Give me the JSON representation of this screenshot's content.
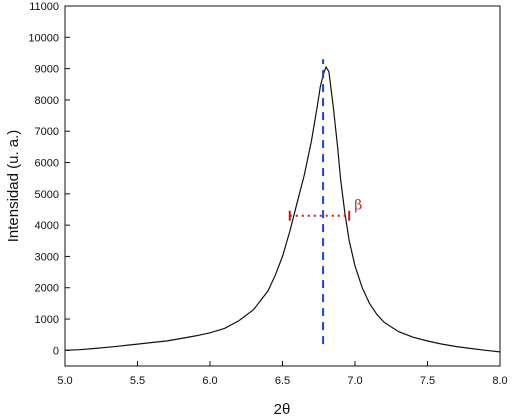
{
  "chart_data": {
    "type": "line",
    "title": "",
    "xlabel": "2θ",
    "ylabel": "Intensidad (u. a.)",
    "xlim": [
      5.0,
      8.0
    ],
    "ylim": [
      -500,
      11000
    ],
    "xticks": [
      5.0,
      5.5,
      6.0,
      6.5,
      7.0,
      7.5,
      8.0
    ],
    "xtick_labels": [
      "5.0",
      "5.5",
      "6.0",
      "6.5",
      "7.0",
      "7.5",
      "8.0"
    ],
    "yticks": [
      0,
      1000,
      2000,
      3000,
      4000,
      5000,
      6000,
      7000,
      8000,
      9000,
      10000,
      11000
    ],
    "ytick_labels": [
      "0",
      "1000",
      "2000",
      "3000",
      "4000",
      "5000",
      "6000",
      "7000",
      "8000",
      "9000",
      "10000",
      "11000"
    ],
    "grid": false,
    "colors": {
      "curve": "#111111",
      "peak_line": "#1f3fd1",
      "fwhm_line": "#c01818"
    },
    "series": [
      {
        "x": [
          5.0,
          5.1,
          5.2,
          5.3,
          5.4,
          5.5,
          5.6,
          5.7,
          5.8,
          5.9,
          6.0,
          6.1,
          6.2,
          6.3,
          6.4,
          6.45,
          6.5,
          6.55,
          6.6,
          6.65,
          6.7,
          6.74,
          6.76,
          6.78,
          6.8,
          6.82,
          6.85,
          6.88,
          6.9,
          6.93,
          6.96,
          7.0,
          7.05,
          7.1,
          7.15,
          7.2,
          7.3,
          7.4,
          7.5,
          7.6,
          7.7,
          7.8,
          7.9,
          8.0
        ],
        "values": [
          0,
          20,
          60,
          100,
          150,
          200,
          250,
          300,
          380,
          460,
          560,
          700,
          950,
          1300,
          1900,
          2400,
          3000,
          3800,
          4700,
          5600,
          6700,
          7800,
          8400,
          8800,
          9050,
          8900,
          7800,
          6500,
          5500,
          4400,
          3500,
          2700,
          2000,
          1500,
          1150,
          900,
          600,
          420,
          300,
          200,
          120,
          60,
          0,
          -50
        ]
      }
    ],
    "annotations": {
      "peak_center_x": 6.78,
      "peak_line_y": [
        200,
        9300
      ],
      "fwhm": {
        "x1": 6.55,
        "x2": 6.96,
        "y": 4300,
        "label": "β"
      }
    }
  }
}
